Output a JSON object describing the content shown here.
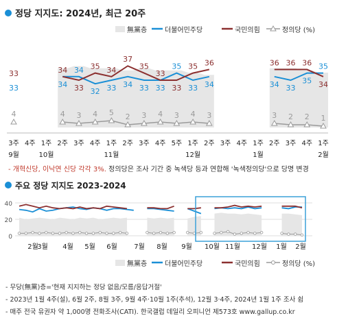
{
  "colors": {
    "minjoo": "#1a8fd6",
    "ppp": "#8b2f2f",
    "justice": "#9a9a9a",
    "none_fill": "#e6e6e6",
    "title_dot": "#1a8fd6",
    "note_red": "#c0392b",
    "box": "#3aa0d8",
    "text": "#333333"
  },
  "chart_data": [
    {
      "type": "line",
      "title": "정당 지지도: 2024년, 최근 20주",
      "legend": [
        "無黨층",
        "더불어민주당",
        "국민의힘",
        "정의당 (%)"
      ],
      "x_labels": [
        "3주",
        "4주",
        "1주",
        "2주",
        "3주",
        "4주",
        "1주",
        "2주",
        "3주",
        "4주",
        "5주",
        "1주",
        "2주",
        "3주",
        "4주",
        "1주",
        "2주",
        "3주",
        "4주",
        "1주"
      ],
      "month_labels": [
        {
          "label": "9월",
          "index": 0
        },
        {
          "label": "10월",
          "index": 2
        },
        {
          "label": "11월",
          "index": 6
        },
        {
          "label": "12월",
          "index": 11
        },
        {
          "label": "1월",
          "index": 15
        },
        {
          "label": "2월",
          "index": 19
        }
      ],
      "gap_indices": [
        0,
        1,
        2,
        14,
        15
      ],
      "series": [
        {
          "name": "더불어민주당",
          "values": [
            33,
            null,
            null,
            34,
            34,
            32,
            33,
            34,
            33,
            33,
            35,
            33,
            34,
            null,
            null,
            null,
            34,
            33,
            35,
            35
          ]
        },
        {
          "name": "국민의힘",
          "values": [
            33,
            null,
            null,
            34,
            33,
            35,
            34,
            37,
            35,
            33,
            33,
            35,
            36,
            null,
            null,
            null,
            36,
            36,
            36,
            34
          ]
        },
        {
          "name": "정의당",
          "values": [
            4,
            null,
            null,
            4,
            3,
            4,
            5,
            2,
            3,
            4,
            3,
            4,
            3,
            null,
            null,
            null,
            3,
            2,
            2,
            1
          ]
        }
      ],
      "none_area": [
        null,
        null,
        null,
        27,
        28,
        27,
        27,
        26,
        27,
        26,
        26,
        25,
        24,
        null,
        null,
        null,
        27,
        27,
        26,
        25
      ]
    },
    {
      "type": "line",
      "title": "주요 정당 지지도 2023-2024",
      "ylim": [
        0,
        40
      ],
      "yticks": [
        "40",
        "20",
        "0"
      ],
      "months": [
        "2월",
        "3월",
        "4월",
        "5월",
        "6월",
        "7월",
        "8월",
        "9월",
        "10월",
        "11월",
        "12월",
        "1월",
        "2월"
      ],
      "legend": [
        "無黨층",
        "더불어민주당",
        "국민의힘",
        "정의당 (%)"
      ],
      "series": [
        {
          "name": "더불어민주당",
          "values": [
            32,
            31,
            29,
            33,
            30,
            31,
            33,
            34,
            35,
            33,
            32,
            34,
            33,
            31,
            33,
            33,
            32,
            31,
            null,
            33,
            33,
            32,
            31,
            30,
            null,
            33,
            30,
            27,
            null,
            33,
            34,
            33,
            34,
            33,
            35,
            33,
            34,
            null,
            null,
            34,
            33,
            35,
            35
          ]
        },
        {
          "name": "국민의힘",
          "values": [
            36,
            38,
            36,
            34,
            36,
            34,
            33,
            34,
            33,
            35,
            33,
            34,
            33,
            36,
            35,
            34,
            33,
            null,
            null,
            34,
            34,
            33,
            33,
            36,
            null,
            33,
            33,
            34,
            null,
            34,
            34,
            35,
            37,
            35,
            36,
            35,
            36,
            null,
            null,
            36,
            36,
            36,
            34
          ]
        },
        {
          "name": "정의당",
          "values": [
            3,
            3,
            4,
            3,
            4,
            3,
            3,
            4,
            3,
            4,
            3,
            3,
            4,
            3,
            3,
            4,
            3,
            null,
            null,
            4,
            3,
            4,
            3,
            4,
            null,
            4,
            3,
            4,
            null,
            3,
            4,
            5,
            2,
            3,
            4,
            3,
            4,
            null,
            null,
            3,
            2,
            2,
            1
          ]
        }
      ],
      "none_area": [
        22,
        20,
        21,
        22,
        21,
        20,
        22,
        21,
        20,
        22,
        21,
        22,
        20,
        21,
        22,
        21,
        22,
        null,
        null,
        22,
        21,
        22,
        21,
        22,
        null,
        21,
        23,
        24,
        null,
        27,
        28,
        27,
        27,
        26,
        27,
        26,
        25,
        null,
        null,
        27,
        27,
        26,
        25
      ],
      "highlight_box": "10월-2월"
    }
  ],
  "header": {
    "title": "정당 지지도: 2024년, 최근 20주"
  },
  "note": {
    "red": "- 개혁신당, 이낙연 신당 각각 3%.",
    "rest": " 정의당은 조사 기간 중 녹색당 등과 연합해 '녹색정의당'으로 당명 변경"
  },
  "section2": {
    "title": "주요 정당 지지도 2023-2024"
  },
  "legend": {
    "none": "無黨층",
    "minjoo": "더불어민주당",
    "ppp": "국민의힘",
    "justice": "정의당 (%)"
  },
  "footnotes": [
    "- 무당(無黨)층='현재 지지하는 정당 없음/모름/응답거절'",
    "- 2023년 1월 4주(설), 6월 2주, 8월 3주, 9월 4주·10월 1주(추석), 12월 3·4주, 2024년 1월 1주 조사 쉼",
    "- 매주 전국 유권자 약 1,000명 전화조사(CATI). 한국갤럽 데일리 오피니언 제573호 www.gallup.co.kr"
  ]
}
